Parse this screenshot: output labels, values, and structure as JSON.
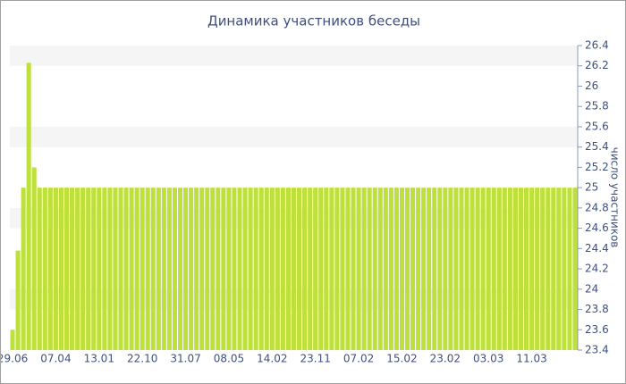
{
  "chart_data": {
    "type": "bar",
    "title": "Динамика участников беседы",
    "y_label": "число участников",
    "categories": [
      "29.06",
      null,
      null,
      null,
      null,
      null,
      null,
      null,
      "07.04",
      null,
      null,
      null,
      null,
      null,
      null,
      null,
      "13.01",
      null,
      null,
      null,
      null,
      null,
      null,
      null,
      "22.10",
      null,
      null,
      null,
      null,
      null,
      null,
      null,
      "31.07",
      null,
      null,
      null,
      null,
      null,
      null,
      null,
      "08.05",
      null,
      null,
      null,
      null,
      null,
      null,
      null,
      "14.02",
      null,
      null,
      null,
      null,
      null,
      null,
      null,
      "23.11",
      null,
      null,
      null,
      null,
      null,
      null,
      null,
      "07.02",
      null,
      null,
      null,
      null,
      null,
      null,
      null,
      "15.02",
      null,
      null,
      null,
      null,
      null,
      null,
      null,
      "23.02",
      null,
      null,
      null,
      null,
      null,
      null,
      null,
      "03.03",
      null,
      null,
      null,
      null,
      null,
      null,
      null,
      "11.03",
      null,
      null,
      null,
      null,
      null,
      null,
      null,
      null
    ],
    "values": [
      23.6,
      24.38,
      25,
      26.23,
      25.2,
      25,
      25,
      25,
      25,
      25,
      25,
      25,
      25,
      25,
      25,
      25,
      25,
      25,
      25,
      25,
      25,
      25,
      25,
      25,
      25,
      25,
      25,
      25,
      25,
      25,
      25,
      25,
      25,
      25,
      25,
      25,
      25,
      25,
      25,
      25,
      25,
      25,
      25,
      25,
      25,
      25,
      25,
      25,
      25,
      25,
      25,
      25,
      25,
      25,
      25,
      25,
      25,
      25,
      25,
      25,
      25,
      25,
      25,
      25,
      25,
      25,
      25,
      25,
      25,
      25,
      25,
      25,
      25,
      25,
      25,
      25,
      25,
      25,
      25,
      25,
      25,
      25,
      25,
      25,
      25,
      25,
      25,
      25,
      25,
      25,
      25,
      25,
      25,
      25,
      25,
      25,
      25,
      25,
      25,
      25,
      25,
      25,
      25,
      25,
      25
    ],
    "color": "#bde03a",
    "ylim": [
      23.4,
      26.4
    ],
    "yticks": [
      23.4,
      23.6,
      23.8,
      24,
      24.2,
      24.4,
      24.6,
      24.8,
      25,
      25.2,
      25.4,
      25.6,
      25.8,
      26,
      26.2,
      26.4
    ],
    "y_axis_side": "right",
    "grid": true
  }
}
